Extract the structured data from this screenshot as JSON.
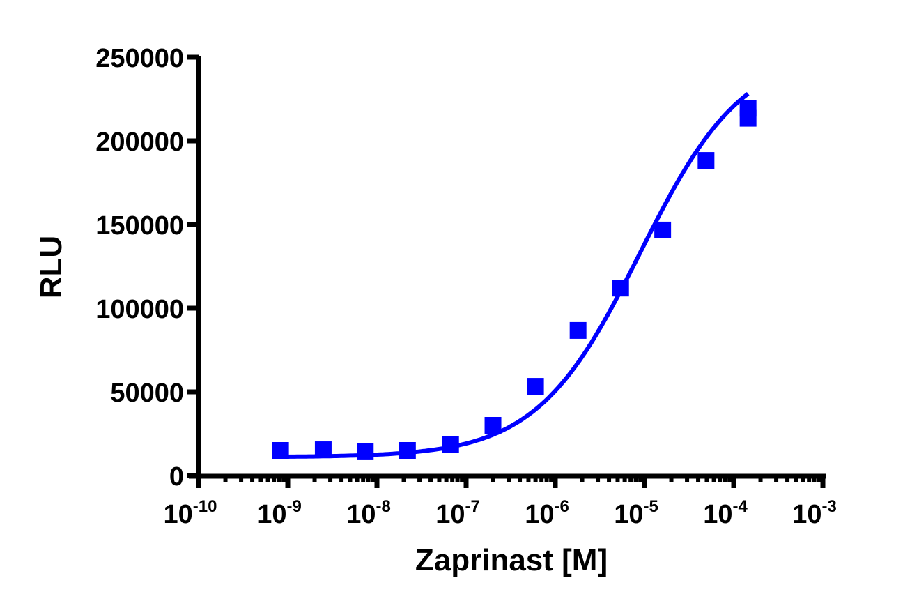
{
  "chart_data": {
    "type": "scatter",
    "subtype": "dose-response with fitted sigmoidal curve",
    "title": "",
    "xlabel": "Zaprinast [M]",
    "ylabel": "RLU",
    "x_scale": "log",
    "xlim": [
      1e-10,
      0.001
    ],
    "ylim": [
      0,
      250000
    ],
    "x_ticks": [
      {
        "base": "10",
        "exp": "-10",
        "value": 1e-10
      },
      {
        "base": "10",
        "exp": "-9",
        "value": 1e-09
      },
      {
        "base": "10",
        "exp": "-8",
        "value": 1e-08
      },
      {
        "base": "10",
        "exp": "-7",
        "value": 1e-07
      },
      {
        "base": "10",
        "exp": "-6",
        "value": 1e-06
      },
      {
        "base": "10",
        "exp": "-5",
        "value": 1e-05
      },
      {
        "base": "10",
        "exp": "-4",
        "value": 0.0001
      },
      {
        "base": "10",
        "exp": "-3",
        "value": 0.001
      }
    ],
    "y_ticks": [
      "0",
      "50000",
      "100000",
      "150000",
      "200000",
      "250000"
    ],
    "y_tick_values": [
      0,
      50000,
      100000,
      150000,
      200000,
      250000
    ],
    "grid": false,
    "legend": null,
    "series": [
      {
        "name": "Zaprinast",
        "color": "#0000ff",
        "marker": "square",
        "points": [
          {
            "x": 8.3e-10,
            "y": 15000
          },
          {
            "x": 2.5e-09,
            "y": 15400
          },
          {
            "x": 7.4e-09,
            "y": 14200
          },
          {
            "x": 2.2e-08,
            "y": 15000
          },
          {
            "x": 6.7e-08,
            "y": 18700
          },
          {
            "x": 2e-07,
            "y": 30000
          },
          {
            "x": 6e-07,
            "y": 53300
          },
          {
            "x": 1.8e-06,
            "y": 86700
          },
          {
            "x": 5.4e-06,
            "y": 112000
          },
          {
            "x": 1.6e-05,
            "y": 146700
          },
          {
            "x": 4.9e-05,
            "y": 188300
          },
          {
            "x": 0.000145,
            "y": 219500
          },
          {
            "x": 0.000145,
            "y": 213500
          }
        ]
      }
    ],
    "fit_curve": {
      "color": "#0000ff",
      "model": "4-parameter logistic",
      "bottom": 11000,
      "top": 255000,
      "log_ec50": -5.05,
      "hill_slope": 0.75,
      "x_range": [
        8.3e-10,
        0.000145
      ]
    }
  }
}
